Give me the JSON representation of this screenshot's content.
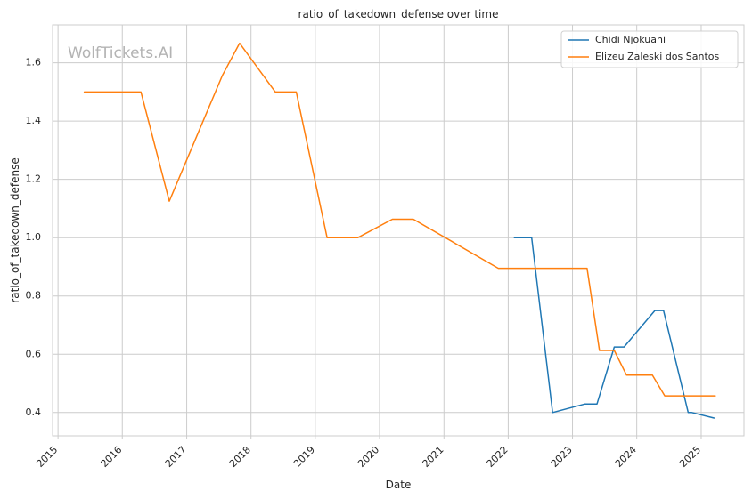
{
  "chart_data": {
    "type": "line",
    "title": "ratio_of_takedown_defense over time",
    "xlabel": "Date",
    "ylabel": "ratio_of_takedown_defense",
    "watermark": "WolfTickets.AI",
    "x_ticks": [
      "2015",
      "2016",
      "2017",
      "2018",
      "2019",
      "2020",
      "2021",
      "2022",
      "2023",
      "2024",
      "2025"
    ],
    "y_ticks": [
      "0.4",
      "0.6",
      "0.8",
      "1.0",
      "1.2",
      "1.4",
      "1.6"
    ],
    "xlim": [
      "2014-12-01",
      "2025-09-01"
    ],
    "ylim": [
      0.32,
      1.73
    ],
    "grid": true,
    "legend_position": "top-right",
    "series": [
      {
        "name": "Chidi Njokuani",
        "color": "#1f77b4",
        "points": [
          [
            "2022-02-05",
            1.0
          ],
          [
            "2022-05-14",
            1.0
          ],
          [
            "2022-09-10",
            0.4
          ],
          [
            "2023-03-11",
            0.429
          ],
          [
            "2023-05-20",
            0.429
          ],
          [
            "2023-08-26",
            0.625
          ],
          [
            "2023-10-21",
            0.625
          ],
          [
            "2024-04-13",
            0.75
          ],
          [
            "2024-06-01",
            0.75
          ],
          [
            "2024-10-19",
            0.4
          ],
          [
            "2024-11-09",
            0.4
          ],
          [
            "2025-03-15",
            0.381
          ]
        ]
      },
      {
        "name": "Elizeu Zaleski dos Santos",
        "color": "#ff7f0e",
        "points": [
          [
            "2015-05-30",
            1.5
          ],
          [
            "2016-04-16",
            1.5
          ],
          [
            "2016-09-24",
            1.125
          ],
          [
            "2017-07-22",
            1.556
          ],
          [
            "2017-10-28",
            1.667
          ],
          [
            "2018-05-19",
            1.5
          ],
          [
            "2018-09-15",
            1.5
          ],
          [
            "2019-03-09",
            1.0
          ],
          [
            "2019-08-31",
            1.0
          ],
          [
            "2020-03-14",
            1.063
          ],
          [
            "2020-07-11",
            1.063
          ],
          [
            "2021-11-06",
            0.895
          ],
          [
            "2023-03-25",
            0.895
          ],
          [
            "2023-06-03",
            0.613
          ],
          [
            "2023-08-26",
            0.613
          ],
          [
            "2023-11-04",
            0.528
          ],
          [
            "2024-03-30",
            0.528
          ],
          [
            "2024-06-08",
            0.457
          ],
          [
            "2025-03-22",
            0.457
          ]
        ]
      }
    ]
  }
}
